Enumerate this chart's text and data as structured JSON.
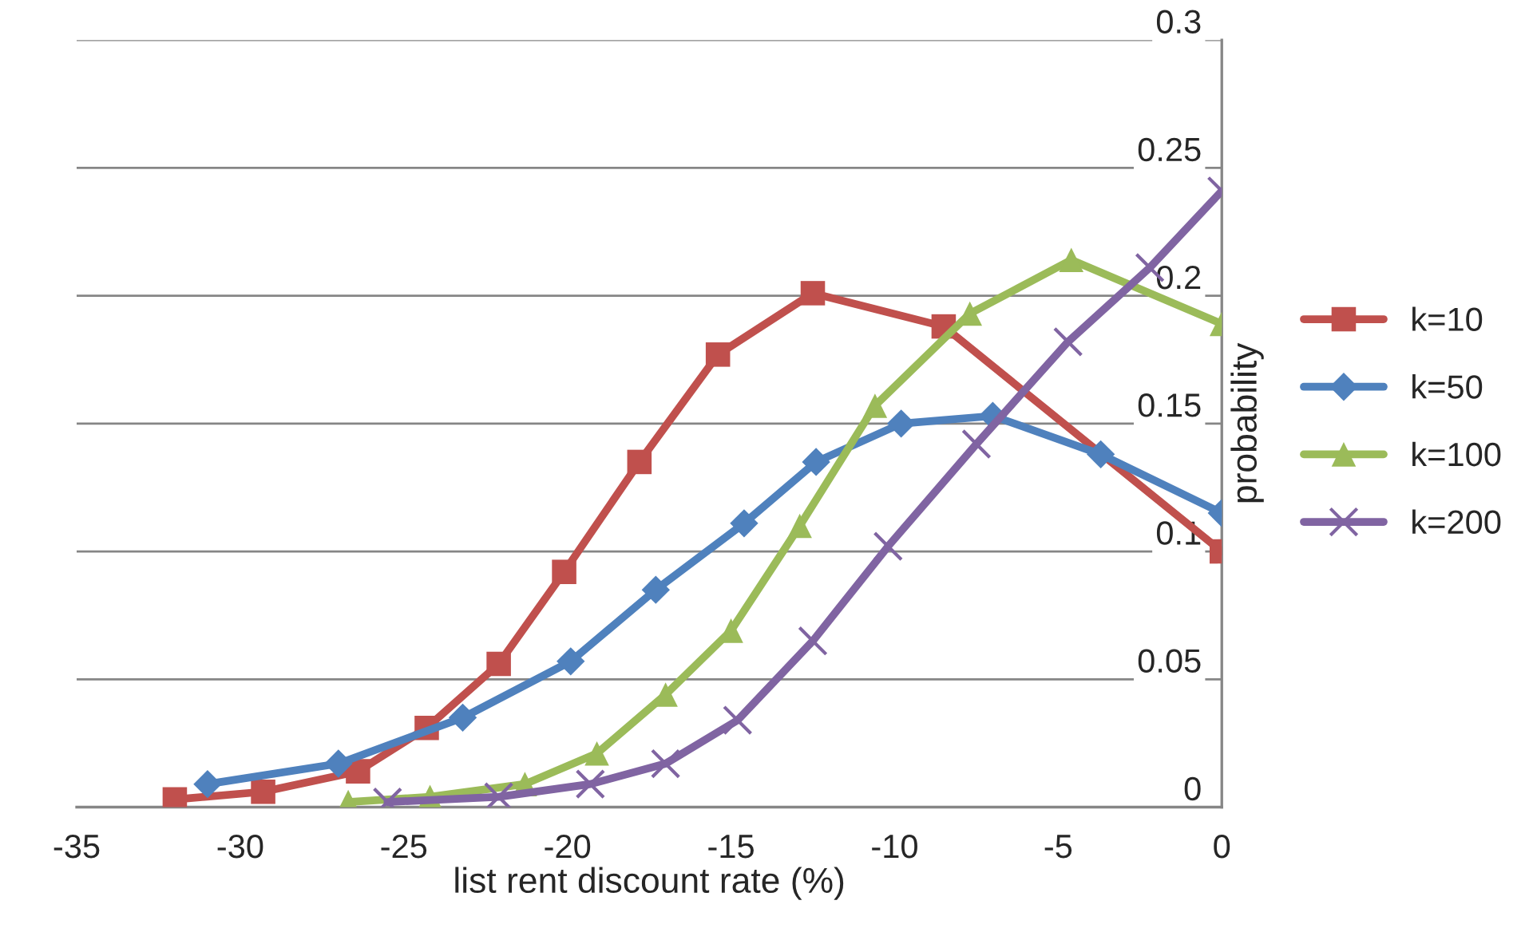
{
  "chart_data": {
    "type": "line",
    "xlabel": "list rent discount rate (%)",
    "ylabel": "probability",
    "xlim": [
      -35,
      0
    ],
    "xticks": [
      -35,
      -30,
      -25,
      -20,
      -15,
      -10,
      -5,
      0
    ],
    "ylim": [
      0,
      0.3
    ],
    "yticks": [
      0,
      0.05,
      0.1,
      0.15,
      0.2,
      0.25,
      0.3
    ],
    "grid": "y",
    "legend": "right",
    "series": [
      {
        "name": "k=10",
        "color": "#c0504d",
        "marker": "square",
        "x": [
          -32,
          -29.3,
          -26.4,
          -24.3,
          -22.1,
          -20.1,
          -17.8,
          -15.4,
          -12.5,
          -8.5,
          0
        ],
        "values": [
          0.003,
          0.006,
          0.014,
          0.031,
          0.056,
          0.092,
          0.135,
          0.177,
          0.201,
          0.188,
          0.1
        ]
      },
      {
        "name": "k=50",
        "color": "#4f81bd",
        "marker": "diamond",
        "x": [
          -31.0,
          -27.0,
          -23.2,
          -19.9,
          -17.3,
          -14.6,
          -12.4,
          -9.8,
          -7.0,
          -3.7,
          0
        ],
        "values": [
          0.009,
          0.017,
          0.035,
          0.057,
          0.085,
          0.111,
          0.135,
          0.15,
          0.153,
          0.138,
          0.115
        ]
      },
      {
        "name": "k=100",
        "color": "#9bbb59",
        "marker": "triangle",
        "x": [
          -26.7,
          -24.2,
          -21.3,
          -19.1,
          -17.0,
          -15.0,
          -12.9,
          -10.6,
          -7.7,
          -4.6,
          0
        ],
        "values": [
          0.002,
          0.004,
          0.009,
          0.021,
          0.044,
          0.069,
          0.11,
          0.157,
          0.193,
          0.214,
          0.189
        ]
      },
      {
        "name": "k=200",
        "color": "#8064a2",
        "marker": "cross",
        "x": [
          -25.5,
          -22.1,
          -19.3,
          -17.0,
          -14.8,
          -12.5,
          -10.2,
          -7.5,
          -4.7,
          -2.2,
          0
        ],
        "values": [
          0.002,
          0.004,
          0.009,
          0.017,
          0.034,
          0.065,
          0.102,
          0.142,
          0.182,
          0.211,
          0.241
        ]
      }
    ]
  }
}
